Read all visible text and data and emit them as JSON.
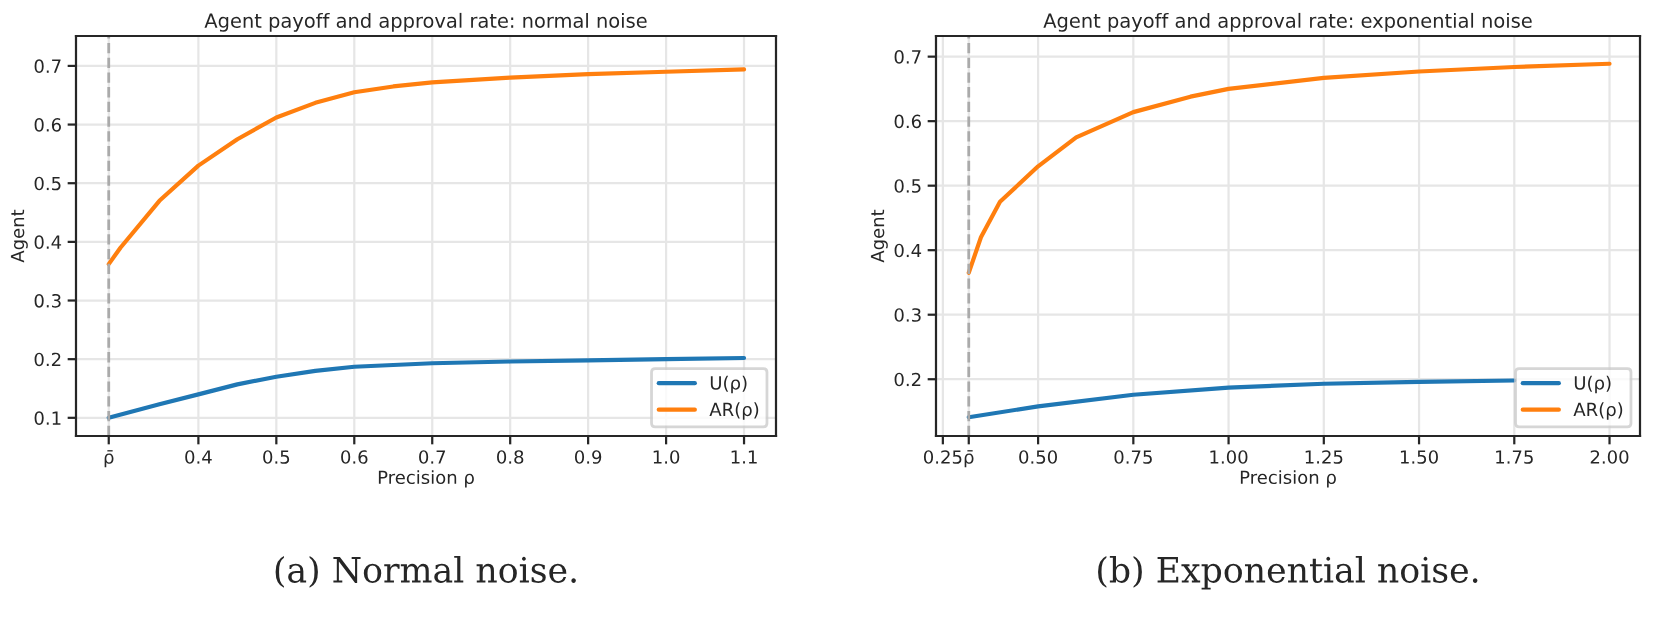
{
  "chart_data": [
    {
      "type": "line",
      "title": "Agent payoff and approval rate: normal noise",
      "xlabel": "Precision ρ",
      "ylabel": "Agent",
      "annotations": [
        "(a) Normal noise."
      ],
      "xlim": [
        0.243,
        1.141
      ],
      "ylim": [
        0.069,
        0.751
      ],
      "xticks": [
        {
          "value": 0.285,
          "label": "ρ̄"
        },
        0.4,
        0.5,
        0.6,
        0.7,
        0.8,
        0.9,
        {
          "value": 1.0,
          "label": "1.0"
        },
        1.1
      ],
      "yticks": [
        0.1,
        0.2,
        0.3,
        0.4,
        0.5,
        0.6,
        0.7
      ],
      "grid": true,
      "legend": "lower right",
      "ref_lines": [
        {
          "axis": "x",
          "value": 0.285,
          "color": "#aaaaaa",
          "line_style": "dashed"
        }
      ],
      "series": [
        {
          "name": "U(ρ)",
          "color": "#1f77b4",
          "x": [
            0.285,
            0.35,
            0.4,
            0.45,
            0.5,
            0.55,
            0.6,
            0.7,
            0.8,
            0.9,
            1.0,
            1.1
          ],
          "values": [
            0.1,
            0.123,
            0.14,
            0.157,
            0.17,
            0.18,
            0.187,
            0.193,
            0.196,
            0.198,
            0.2,
            0.202
          ]
        },
        {
          "name": "AR(ρ)",
          "color": "#ff7f0e",
          "x": [
            0.285,
            0.3,
            0.35,
            0.4,
            0.45,
            0.5,
            0.55,
            0.6,
            0.65,
            0.7,
            0.8,
            0.9,
            1.0,
            1.1
          ],
          "values": [
            0.362,
            0.39,
            0.47,
            0.53,
            0.575,
            0.612,
            0.637,
            0.655,
            0.665,
            0.672,
            0.68,
            0.686,
            0.69,
            0.694
          ]
        }
      ]
    },
    {
      "type": "line",
      "title": "Agent payoff and approval rate: exponential noise",
      "xlabel": "Precision ρ",
      "ylabel": "Agent",
      "annotations": [
        "(b) Exponential noise."
      ],
      "xlim": [
        0.232,
        2.08
      ],
      "ylim": [
        0.112,
        0.732
      ],
      "xticks": [
        {
          "value": 0.25,
          "label": "0.25"
        },
        {
          "value": 0.318,
          "label": "ρ̄"
        },
        {
          "value": 0.5,
          "label": "0.50"
        },
        {
          "value": 0.75,
          "label": "0.75"
        },
        {
          "value": 1.0,
          "label": "1.00"
        },
        {
          "value": 1.25,
          "label": "1.25"
        },
        {
          "value": 1.5,
          "label": "1.50"
        },
        {
          "value": 1.75,
          "label": "1.75"
        },
        {
          "value": 2.0,
          "label": "2.00"
        }
      ],
      "yticks": [
        0.2,
        0.3,
        0.4,
        0.5,
        0.6,
        0.7
      ],
      "grid": true,
      "legend": "lower right",
      "ref_lines": [
        {
          "axis": "x",
          "value": 0.318,
          "color": "#aaaaaa",
          "line_style": "dashed"
        }
      ],
      "series": [
        {
          "name": "U(ρ)",
          "color": "#1f77b4",
          "x": [
            0.318,
            0.5,
            0.75,
            1.0,
            1.25,
            1.5,
            1.75
          ],
          "values": [
            0.141,
            0.158,
            0.176,
            0.187,
            0.193,
            0.196,
            0.198
          ]
        },
        {
          "name": "AR(ρ)",
          "color": "#ff7f0e",
          "x": [
            0.318,
            0.35,
            0.4,
            0.5,
            0.6,
            0.75,
            0.9,
            1.0,
            1.25,
            1.5,
            1.75,
            2.0
          ],
          "values": [
            0.365,
            0.42,
            0.475,
            0.53,
            0.575,
            0.614,
            0.638,
            0.65,
            0.667,
            0.677,
            0.684,
            0.689
          ]
        }
      ]
    }
  ]
}
